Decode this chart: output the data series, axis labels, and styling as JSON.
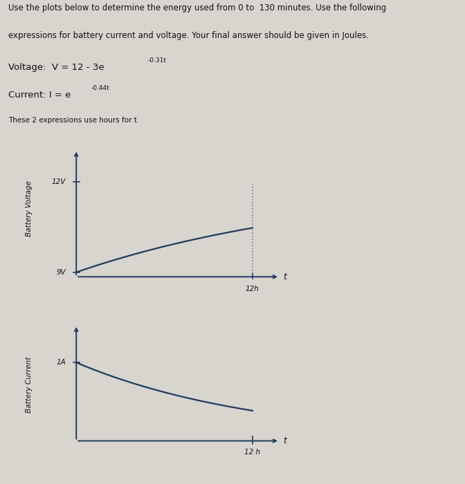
{
  "bg_color": "#d8d4ce",
  "text_color": "#111111",
  "line_color": "#1e3a5f",
  "axis_color": "#1e3a5f",
  "dotted_color": "#6080a0",
  "title_line1": "Use the plots below to determine the energy used from 0 to  130 minutes. Use the following",
  "title_line2": "expressions for battery current and voltage. Your final answer should be given in Joules.",
  "voltage_text": "Voltage:  V = 12 - 3e",
  "voltage_exp": "-0.31t",
  "current_text": "Current: I = e",
  "current_exp": "-0.44t",
  "note": "These 2 expressions use hours for t",
  "plot1_ylabel": "Battery Voltage",
  "plot1_ytick1": "9V",
  "plot1_ytick2": "12V",
  "plot1_xmax_label": "12h",
  "plot1_xlabel": "t",
  "plot2_ylabel": "Battery Current",
  "plot2_ytick1": "1A",
  "plot2_xmax_label": "12 h",
  "plot2_xlabel": "t",
  "fig_width": 6.72,
  "fig_height": 7.0
}
